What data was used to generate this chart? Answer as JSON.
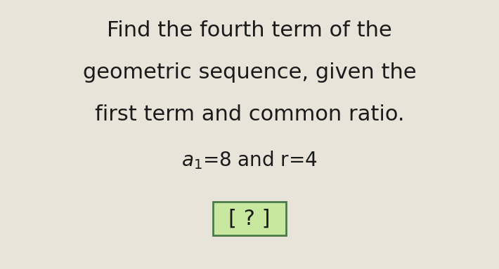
{
  "line1": "Find the fourth term of the",
  "line2": "geometric sequence, given the",
  "line3": "first term and common ratio.",
  "line4_a1": "a",
  "line4_sub": "1",
  "line4_rest": "=8 and r=4",
  "answer_text": "[ ? ]",
  "bg_color": "#e8e4da",
  "text_color": "#1a1a1a",
  "box_fill": "#c8e8a0",
  "box_edge": "#4a7a4a",
  "title_fontsize": 22,
  "sub_fontsize": 20,
  "answer_fontsize": 22,
  "fig_width": 7.1,
  "fig_height": 3.84
}
